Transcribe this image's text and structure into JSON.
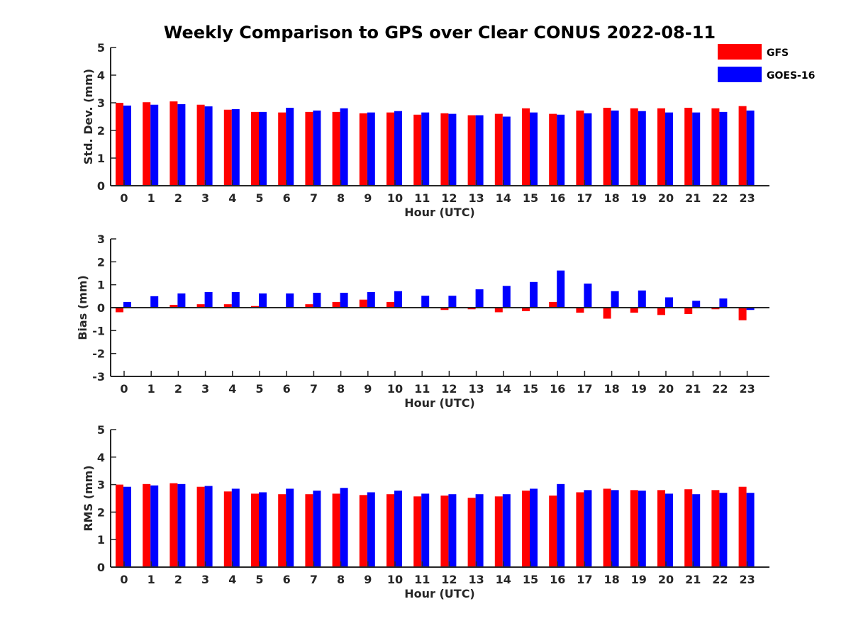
{
  "title": "Weekly Comparison to GPS over Clear CONUS 2022-08-11",
  "legend": {
    "placement": "top-right",
    "entries": [
      {
        "label": "GFS",
        "color": "#ff0000"
      },
      {
        "label": "GOES-16",
        "color": "#0000ff"
      }
    ]
  },
  "chart_data": [
    {
      "type": "bar",
      "categories": [
        "0",
        "1",
        "2",
        "3",
        "4",
        "5",
        "6",
        "7",
        "8",
        "9",
        "10",
        "11",
        "12",
        "13",
        "14",
        "15",
        "16",
        "17",
        "18",
        "19",
        "20",
        "21",
        "22",
        "23"
      ],
      "xlabel": "Hour (UTC)",
      "ylabel": "Std. Dev. (mm)",
      "ylim": [
        0,
        5
      ],
      "yticks": [
        "0",
        "1",
        "2",
        "3",
        "4",
        "5"
      ],
      "grid": false,
      "series": [
        {
          "name": "GFS",
          "color": "#ff0000",
          "values": [
            3.0,
            3.02,
            3.05,
            2.93,
            2.75,
            2.67,
            2.65,
            2.67,
            2.67,
            2.62,
            2.65,
            2.57,
            2.62,
            2.55,
            2.6,
            2.8,
            2.6,
            2.72,
            2.82,
            2.8,
            2.8,
            2.82,
            2.8,
            2.88
          ]
        },
        {
          "name": "GOES-16",
          "color": "#0000ff",
          "values": [
            2.9,
            2.93,
            2.95,
            2.87,
            2.77,
            2.67,
            2.82,
            2.72,
            2.8,
            2.65,
            2.7,
            2.65,
            2.6,
            2.55,
            2.5,
            2.65,
            2.57,
            2.62,
            2.72,
            2.7,
            2.65,
            2.65,
            2.67,
            2.72
          ]
        }
      ]
    },
    {
      "type": "bar",
      "categories": [
        "0",
        "1",
        "2",
        "3",
        "4",
        "5",
        "6",
        "7",
        "8",
        "9",
        "10",
        "11",
        "12",
        "13",
        "14",
        "15",
        "16",
        "17",
        "18",
        "19",
        "20",
        "21",
        "22",
        "23"
      ],
      "xlabel": "Hour (UTC)",
      "ylabel": "Bias (mm)",
      "ylim": [
        -3,
        3
      ],
      "yticks": [
        "-3",
        "-2",
        "-1",
        "0",
        "1",
        "2",
        "3"
      ],
      "grid": false,
      "zero_line": true,
      "series": [
        {
          "name": "GFS",
          "color": "#ff0000",
          "values": [
            -0.2,
            0.0,
            0.12,
            0.15,
            0.15,
            0.07,
            0.02,
            0.15,
            0.25,
            0.35,
            0.25,
            0.02,
            -0.1,
            -0.07,
            -0.2,
            -0.15,
            0.25,
            -0.22,
            -0.48,
            -0.22,
            -0.32,
            -0.28,
            -0.07,
            -0.55
          ]
        },
        {
          "name": "GOES-16",
          "color": "#0000ff",
          "values": [
            0.25,
            0.5,
            0.62,
            0.68,
            0.68,
            0.62,
            0.62,
            0.65,
            0.65,
            0.68,
            0.72,
            0.52,
            0.52,
            0.8,
            0.95,
            1.12,
            1.62,
            1.05,
            0.72,
            0.75,
            0.45,
            0.3,
            0.4,
            -0.1
          ]
        }
      ]
    },
    {
      "type": "bar",
      "categories": [
        "0",
        "1",
        "2",
        "3",
        "4",
        "5",
        "6",
        "7",
        "8",
        "9",
        "10",
        "11",
        "12",
        "13",
        "14",
        "15",
        "16",
        "17",
        "18",
        "19",
        "20",
        "21",
        "22",
        "23"
      ],
      "xlabel": "Hour (UTC)",
      "ylabel": "RMS (mm)",
      "ylim": [
        0,
        5
      ],
      "yticks": [
        "0",
        "1",
        "2",
        "3",
        "4",
        "5"
      ],
      "grid": false,
      "series": [
        {
          "name": "GFS",
          "color": "#ff0000",
          "values": [
            3.0,
            3.02,
            3.05,
            2.92,
            2.75,
            2.67,
            2.65,
            2.65,
            2.67,
            2.62,
            2.65,
            2.57,
            2.6,
            2.52,
            2.57,
            2.78,
            2.6,
            2.72,
            2.85,
            2.8,
            2.8,
            2.83,
            2.8,
            2.92
          ]
        },
        {
          "name": "GOES-16",
          "color": "#0000ff",
          "values": [
            2.92,
            2.97,
            3.02,
            2.95,
            2.85,
            2.72,
            2.85,
            2.78,
            2.88,
            2.72,
            2.78,
            2.67,
            2.65,
            2.65,
            2.65,
            2.85,
            3.02,
            2.8,
            2.8,
            2.78,
            2.67,
            2.65,
            2.7,
            2.7
          ]
        }
      ]
    }
  ]
}
